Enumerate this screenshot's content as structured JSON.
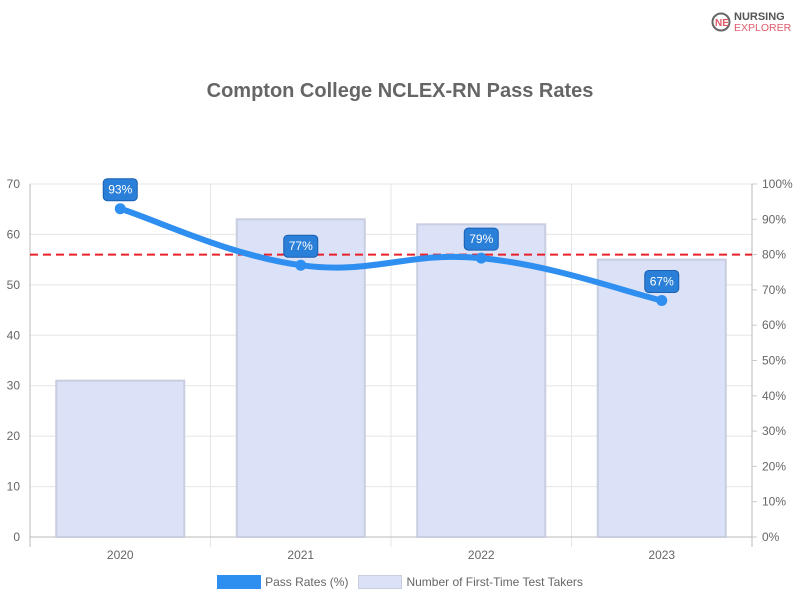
{
  "logo": {
    "line1": "NURSING",
    "line2": "EXPLORER"
  },
  "chart_data": {
    "type": "bar",
    "title": "Compton College NCLEX-RN Pass Rates",
    "categories": [
      "2020",
      "2021",
      "2022",
      "2023"
    ],
    "series": [
      {
        "name": "Pass Rates (%)",
        "type": "line",
        "axis": "right",
        "values": [
          93,
          77,
          79,
          67
        ],
        "labels": [
          "93%",
          "77%",
          "79%",
          "67%"
        ],
        "color": "#2f8ff0"
      },
      {
        "name": "Number of First-Time Test Takers",
        "type": "bar",
        "axis": "left",
        "values": [
          31,
          63,
          62,
          55
        ],
        "color": "#dbe2f8"
      }
    ],
    "reference_line": {
      "value": 80,
      "axis": "right",
      "color": "#e8202a",
      "style": "dashed"
    },
    "y_left": {
      "ylim": [
        0,
        70
      ],
      "ticks": [
        "0",
        "10",
        "20",
        "30",
        "40",
        "50",
        "60",
        "70"
      ]
    },
    "y_right": {
      "ylim": [
        0,
        100
      ],
      "ticks": [
        "0%",
        "10%",
        "20%",
        "30%",
        "40%",
        "50%",
        "60%",
        "70%",
        "80%",
        "90%",
        "100%"
      ]
    },
    "grid": true,
    "legend": "bottom"
  }
}
